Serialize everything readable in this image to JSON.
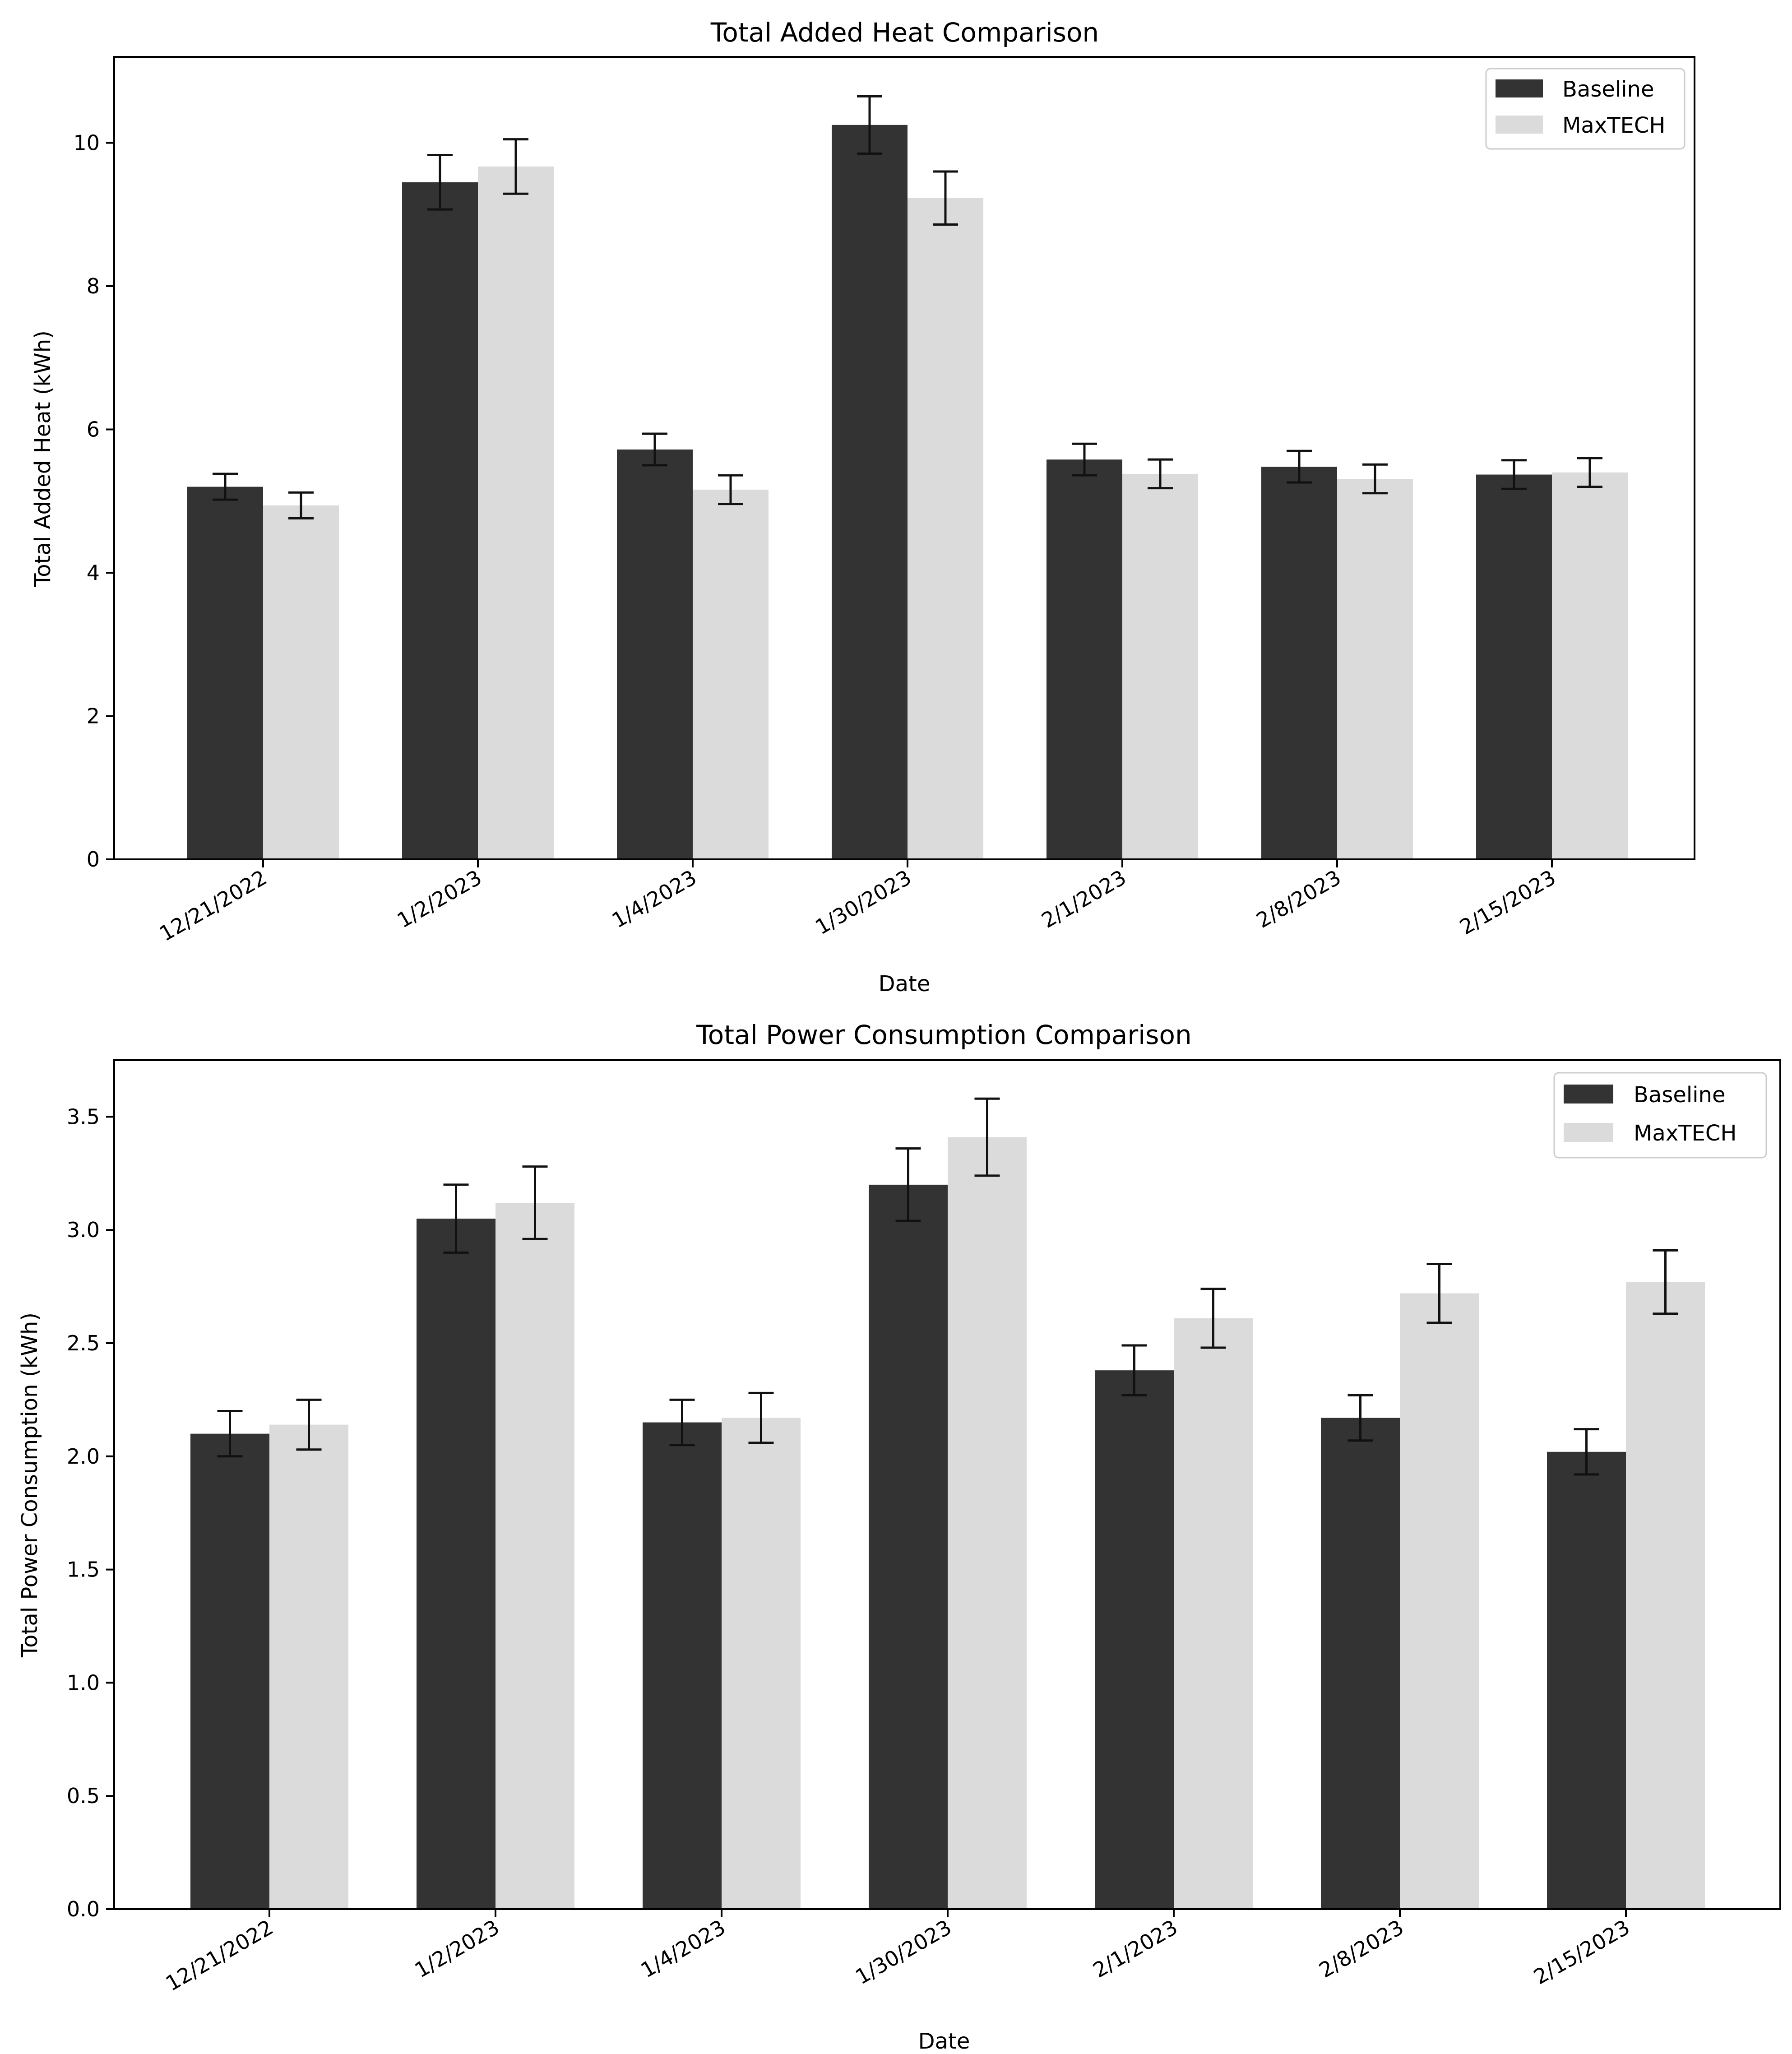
{
  "chart_data": [
    {
      "type": "bar",
      "title": "Total Added Heat Comparison",
      "xlabel": "Date",
      "ylabel": "Total Added Heat (kWh)",
      "ylim": [
        0,
        11.2
      ],
      "yticks": [
        0,
        2,
        4,
        6,
        8,
        10
      ],
      "ytick_labels": [
        "0",
        "2",
        "4",
        "6",
        "8",
        "10"
      ],
      "grid": false,
      "legend_position": "top-right",
      "categories": [
        "12/21/2022",
        "1/2/2023",
        "1/4/2023",
        "1/30/2023",
        "2/1/2023",
        "2/8/2023",
        "2/15/2023"
      ],
      "series": [
        {
          "name": "Baseline",
          "color": "#333333",
          "values": [
            5.2,
            9.45,
            5.72,
            10.25,
            5.58,
            5.48,
            5.37
          ],
          "errors": [
            0.18,
            0.38,
            0.22,
            0.4,
            0.22,
            0.22,
            0.2
          ]
        },
        {
          "name": "MaxTECH",
          "color": "#dbdbdb",
          "values": [
            4.94,
            9.67,
            5.16,
            9.23,
            5.38,
            5.31,
            5.4
          ],
          "errors": [
            0.18,
            0.38,
            0.2,
            0.37,
            0.2,
            0.2,
            0.2
          ]
        }
      ]
    },
    {
      "type": "bar",
      "title": "Total Power Consumption Comparison",
      "xlabel": "Date",
      "ylabel": "Total Power Consumption (kWh)",
      "ylim": [
        0,
        3.75
      ],
      "yticks": [
        0,
        0.5,
        1,
        1.5,
        2,
        2.5,
        3,
        3.5
      ],
      "ytick_labels": [
        "0.0",
        "0.5",
        "1.0",
        "1.5",
        "2.0",
        "2.5",
        "3.0",
        "3.5"
      ],
      "grid": false,
      "legend_position": "top-right",
      "categories": [
        "12/21/2022",
        "1/2/2023",
        "1/4/2023",
        "1/30/2023",
        "2/1/2023",
        "2/8/2023",
        "2/15/2023"
      ],
      "series": [
        {
          "name": "Baseline",
          "color": "#333333",
          "values": [
            2.1,
            3.05,
            2.15,
            3.2,
            2.38,
            2.17,
            2.02
          ],
          "errors": [
            0.1,
            0.15,
            0.1,
            0.16,
            0.11,
            0.1,
            0.1
          ]
        },
        {
          "name": "MaxTECH",
          "color": "#dbdbdb",
          "values": [
            2.14,
            3.12,
            2.17,
            3.41,
            2.61,
            2.72,
            2.77
          ],
          "errors": [
            0.11,
            0.16,
            0.11,
            0.17,
            0.13,
            0.13,
            0.14
          ]
        }
      ]
    }
  ]
}
